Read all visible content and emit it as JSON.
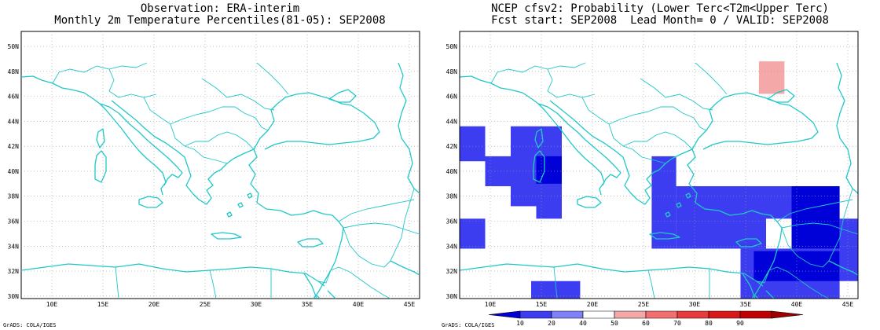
{
  "left_panel": {
    "title_line1": "Observation: ERA-interim",
    "title_line2": "Monthly 2m Temperature Percentiles(81-05): SEP2008",
    "credit": "GrADS: COLA/IGES"
  },
  "right_panel": {
    "title_line1": "NCEP cfsv2: Probability (Lower Terc<T2m<Upper Terc)",
    "title_line2": "Fcst start: SEP2008  Lead Month= 0 / VALID: SEP2008",
    "credit": "GrADS: COLA/IGES"
  },
  "axes": {
    "lon_ticks": [
      "10E",
      "15E",
      "20E",
      "25E",
      "30E",
      "35E",
      "40E",
      "45E"
    ],
    "lat_ticks": [
      "30N",
      "32N",
      "34N",
      "36N",
      "38N",
      "40N",
      "42N",
      "44N",
      "46N",
      "48N",
      "50N"
    ],
    "lon_values": [
      10,
      15,
      20,
      25,
      30,
      35,
      40,
      45
    ],
    "lat_values": [
      30,
      32,
      34,
      36,
      38,
      40,
      42,
      44,
      46,
      48,
      50
    ],
    "lon_range": [
      7,
      46
    ],
    "lat_range": [
      29.8,
      51.2
    ],
    "grid": "dotted"
  },
  "colorbar": {
    "labels": [
      "10",
      "20",
      "40",
      "50",
      "60",
      "70",
      "80",
      "90"
    ],
    "colors": [
      "#0000d8",
      "#3c3cf0",
      "#8080f8",
      "#ffffff",
      "#f4a8a8",
      "#f47070",
      "#e83c3c",
      "#d81818",
      "#c00000",
      "#a00000"
    ]
  },
  "colors": {
    "coast": "#20c8c8",
    "blue_light": "#3c3cf0",
    "blue_dark": "#0000d8",
    "pink": "#f4a8a8"
  },
  "probability_cells": [
    {
      "lon0": 7.0,
      "lon1": 9.5,
      "lat0": 40.8,
      "lat1": 43.6,
      "cls": "blue_light"
    },
    {
      "lon0": 9.5,
      "lon1": 12.0,
      "lat0": 38.8,
      "lat1": 41.2,
      "cls": "blue_light"
    },
    {
      "lon0": 12.0,
      "lon1": 17.0,
      "lat0": 37.2,
      "lat1": 43.6,
      "cls": "blue_light"
    },
    {
      "lon0": 14.5,
      "lon1": 17.0,
      "lat0": 36.2,
      "lat1": 38.8,
      "cls": "blue_light"
    },
    {
      "lon0": 14.5,
      "lon1": 17.0,
      "lat0": 39.0,
      "lat1": 41.2,
      "cls": "blue_dark"
    },
    {
      "lon0": 7.0,
      "lon1": 9.5,
      "lat0": 33.8,
      "lat1": 36.2,
      "cls": "blue_light"
    },
    {
      "lon0": 14.0,
      "lon1": 18.8,
      "lat0": 29.8,
      "lat1": 31.2,
      "cls": "blue_light"
    },
    {
      "lon0": 25.8,
      "lon1": 28.2,
      "lat0": 33.8,
      "lat1": 41.2,
      "cls": "blue_light"
    },
    {
      "lon0": 28.2,
      "lon1": 37.0,
      "lat0": 33.8,
      "lat1": 38.8,
      "cls": "blue_light"
    },
    {
      "lon0": 37.0,
      "lon1": 43.8,
      "lat0": 36.2,
      "lat1": 38.8,
      "cls": "blue_light"
    },
    {
      "lon0": 34.5,
      "lon1": 44.2,
      "lat0": 29.8,
      "lat1": 33.8,
      "cls": "blue_light"
    },
    {
      "lon0": 35.8,
      "lon1": 44.2,
      "lat0": 31.2,
      "lat1": 33.6,
      "cls": "blue_dark"
    },
    {
      "lon0": 39.5,
      "lon1": 44.2,
      "lat0": 33.8,
      "lat1": 38.8,
      "cls": "blue_dark"
    },
    {
      "lon0": 44.2,
      "lon1": 46.0,
      "lat0": 31.2,
      "lat1": 36.2,
      "cls": "blue_light"
    },
    {
      "lon0": 36.3,
      "lon1": 38.8,
      "lat0": 46.2,
      "lat1": 48.8,
      "cls": "pink"
    }
  ]
}
